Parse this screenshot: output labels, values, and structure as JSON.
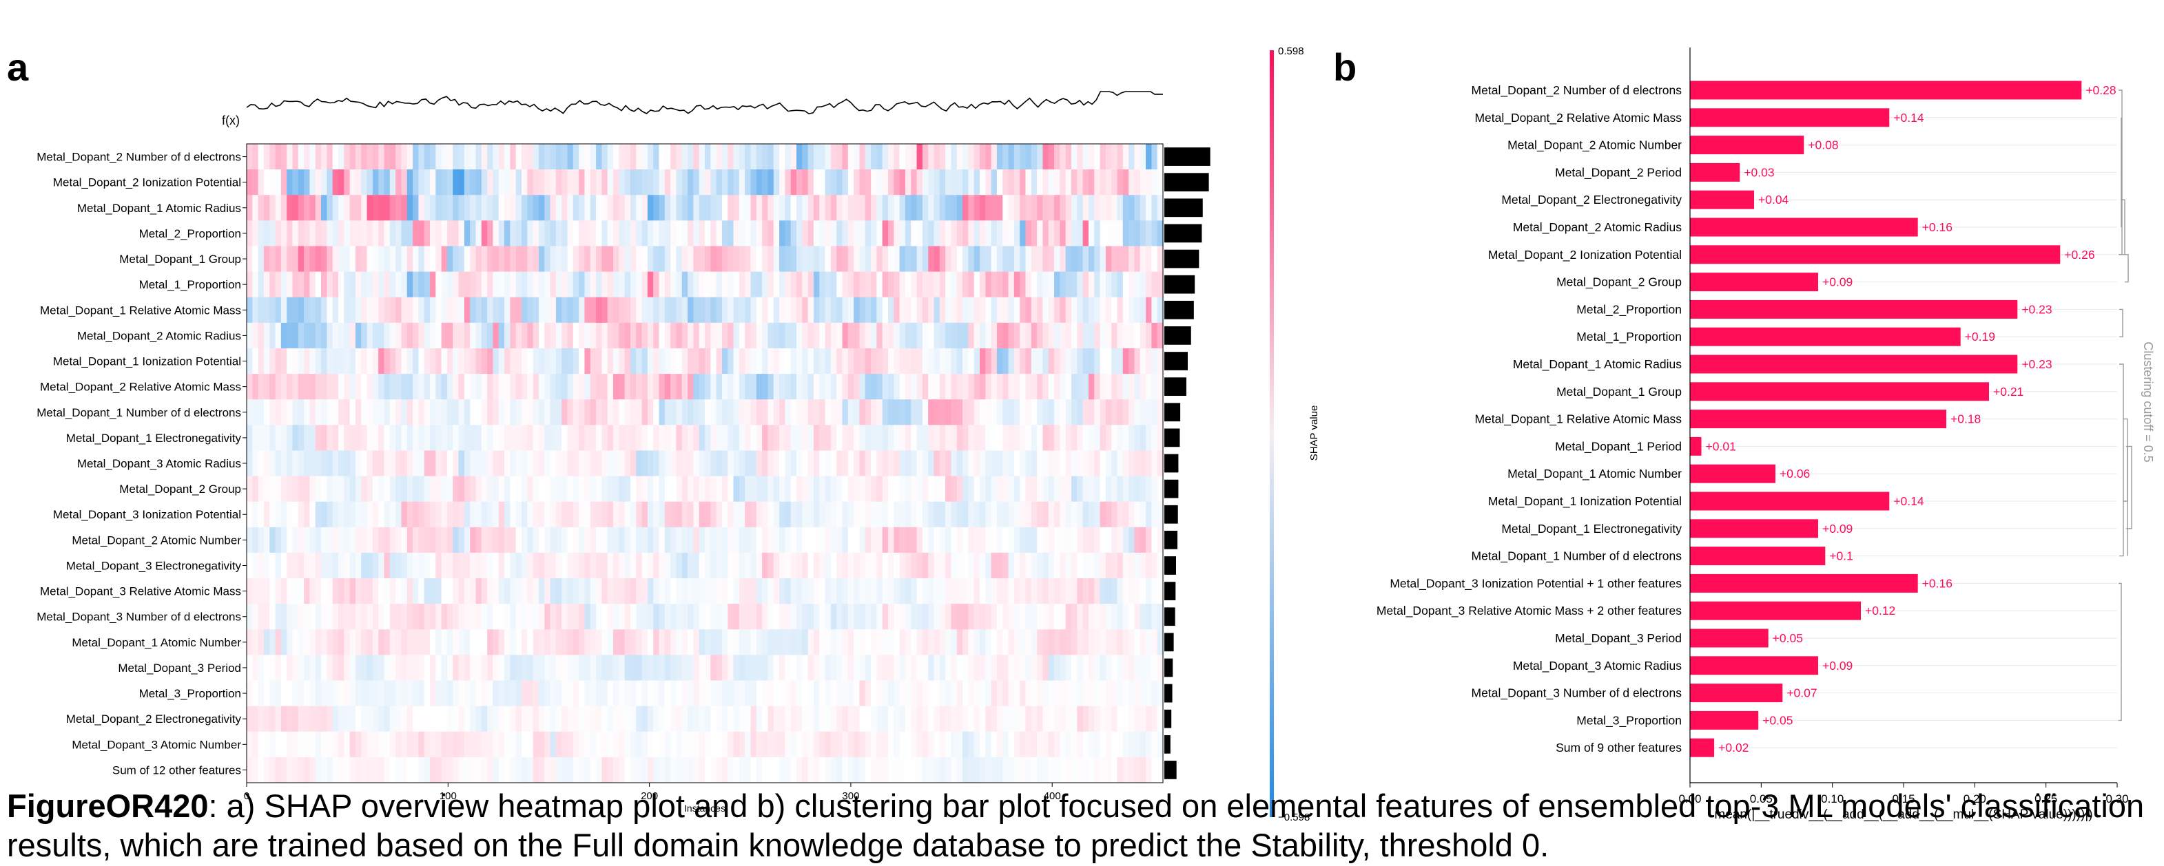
{
  "panel_a": {
    "letter": "a",
    "fx_label": "f(x)",
    "xlabel": "Instances",
    "x_ticks": [
      "0",
      "100",
      "200",
      "300",
      "400"
    ],
    "colorbar": {
      "max_label": "0.598",
      "min_label": "−0.598",
      "label": "SHAP value"
    },
    "colors": {
      "positive": "#ff0d57",
      "negative": "#1e88e5",
      "neutral": "#ffffff",
      "bar": "#000000"
    }
  },
  "panel_b": {
    "letter": "b",
    "xlabel": "mean(|__truediv__(__add__(__add__(__mul__(SHAP value)))))|)",
    "x_ticks": [
      "0.00",
      "0.05",
      "0.10",
      "0.15",
      "0.20",
      "0.25",
      "0.30"
    ],
    "cutoff_label": "Clustering cutoff = 0.5",
    "bar_color": "#ff0d57"
  },
  "chart_data": [
    {
      "type": "heatmap",
      "xlabel": "Instances",
      "x_range": [
        0,
        455
      ],
      "color_range": [
        -0.598,
        0.598
      ],
      "features": [
        "Metal_Dopant_2 Number of d electrons",
        "Metal_Dopant_2 Ionization Potential",
        "Metal_Dopant_1 Atomic Radius",
        "Metal_2_Proportion",
        "Metal_Dopant_1 Group",
        "Metal_1_Proportion",
        "Metal_Dopant_1 Relative Atomic Mass",
        "Metal_Dopant_2 Atomic Radius",
        "Metal_Dopant_1 Ionization Potential",
        "Metal_Dopant_2 Relative Atomic Mass",
        "Metal_Dopant_1 Number of d electrons",
        "Metal_Dopant_1 Electronegativity",
        "Metal_Dopant_3 Atomic Radius",
        "Metal_Dopant_2 Group",
        "Metal_Dopant_3 Ionization Potential",
        "Metal_Dopant_2 Atomic Number",
        "Metal_Dopant_3 Electronegativity",
        "Metal_Dopant_3 Relative Atomic Mass",
        "Metal_Dopant_3 Number of d electrons",
        "Metal_Dopant_1 Atomic Number",
        "Metal_Dopant_3 Period",
        "Metal_3_Proportion",
        "Metal_Dopant_2 Electronegativity",
        "Metal_Dopant_3 Atomic Number",
        "Sum of 12 other features"
      ],
      "mean_abs_importance": [
        0.98,
        0.95,
        0.82,
        0.8,
        0.74,
        0.65,
        0.63,
        0.57,
        0.5,
        0.47,
        0.34,
        0.33,
        0.3,
        0.3,
        0.29,
        0.28,
        0.25,
        0.24,
        0.23,
        0.2,
        0.18,
        0.17,
        0.15,
        0.13,
        0.26
      ],
      "row_intensity": [
        0.85,
        0.85,
        0.7,
        0.65,
        0.6,
        0.6,
        0.55,
        0.55,
        0.5,
        0.5,
        0.4,
        0.3,
        0.3,
        0.3,
        0.3,
        0.3,
        0.3,
        0.25,
        0.25,
        0.25,
        0.25,
        0.2,
        0.2,
        0.2,
        0.15
      ]
    },
    {
      "type": "bar",
      "orientation": "horizontal",
      "xlabel": "mean(|__truediv__(__add__(__add__(__mul__(SHAP value)))))|)",
      "xlim": [
        0,
        0.3
      ],
      "categories": [
        "Metal_Dopant_2 Number of d electrons",
        "Metal_Dopant_2 Relative Atomic Mass",
        "Metal_Dopant_2 Atomic Number",
        "Metal_Dopant_2 Period",
        "Metal_Dopant_2 Electronegativity",
        "Metal_Dopant_2 Atomic Radius",
        "Metal_Dopant_2 Ionization Potential",
        "Metal_Dopant_2 Group",
        "Metal_2_Proportion",
        "Metal_1_Proportion",
        "Metal_Dopant_1 Atomic Radius",
        "Metal_Dopant_1 Group",
        "Metal_Dopant_1 Relative Atomic Mass",
        "Metal_Dopant_1 Period",
        "Metal_Dopant_1 Atomic Number",
        "Metal_Dopant_1 Ionization Potential",
        "Metal_Dopant_1 Electronegativity",
        "Metal_Dopant_1 Number of d electrons",
        "Metal_Dopant_3 Ionization Potential + 1 other features",
        "Metal_Dopant_3 Relative Atomic Mass + 2 other features",
        "Metal_Dopant_3 Period",
        "Metal_Dopant_3 Atomic Radius",
        "Metal_Dopant_3 Number of d electrons",
        "Metal_3_Proportion",
        "Sum of 9 other features"
      ],
      "values": [
        0.275,
        0.14,
        0.08,
        0.035,
        0.045,
        0.16,
        0.26,
        0.09,
        0.23,
        0.19,
        0.23,
        0.21,
        0.18,
        0.008,
        0.06,
        0.14,
        0.09,
        0.095,
        0.16,
        0.12,
        0.055,
        0.09,
        0.065,
        0.048,
        0.017
      ],
      "value_labels": [
        "+0.28",
        "+0.14",
        "+0.08",
        "+0.03",
        "+0.04",
        "+0.16",
        "+0.26",
        "+0.09",
        "+0.23",
        "+0.19",
        "+0.23",
        "+0.21",
        "+0.18",
        "+0.01",
        "+0.06",
        "+0.14",
        "+0.09",
        "+0.1",
        "+0.16",
        "+0.12",
        "+0.05",
        "+0.09",
        "+0.07",
        "+0.05",
        "+0.02"
      ]
    }
  ],
  "caption": {
    "bold": "FigureOR420",
    "text": ": a) SHAP overview heatmap plot and b) clustering bar plot focused on elemental features of ensembled top-3 ML models' classification results, which are trained based on the Full domain knowledge database to predict the Stability, threshold 0."
  }
}
